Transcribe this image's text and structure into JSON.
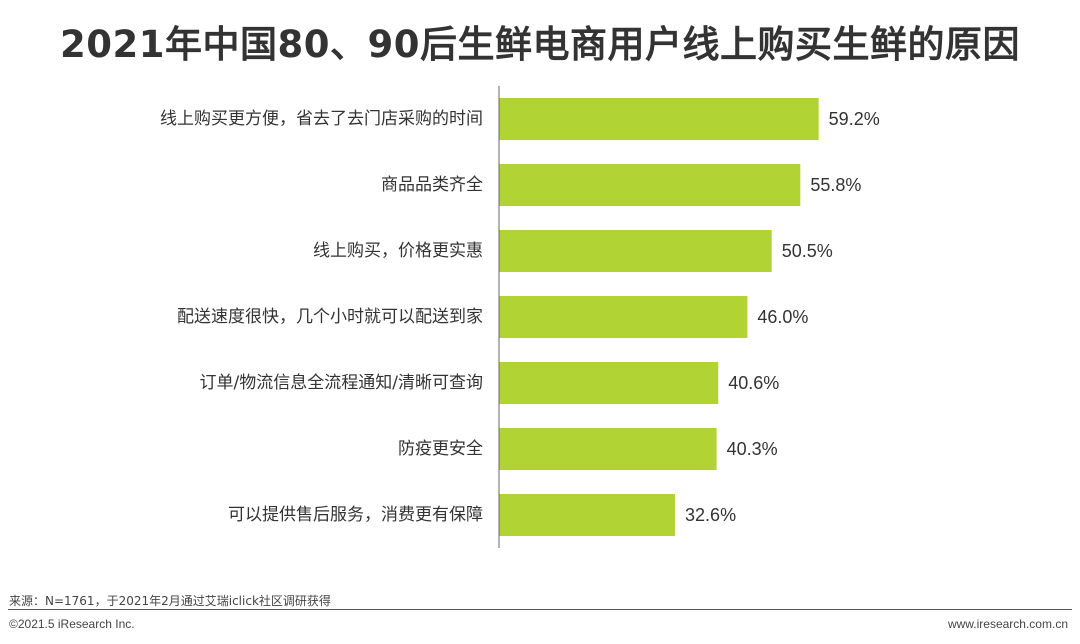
{
  "title": "2021年中国80、90后生鲜电商用户线上购买生鲜的原因",
  "chart_data": {
    "type": "bar",
    "orientation": "horizontal",
    "categories": [
      "线上购买更方便，省去了去门店采购的时间",
      "商品品类齐全",
      "线上购买，价格更实惠",
      "配送速度很快，几个小时就可以配送到家",
      "订单/物流信息全流程通知/清晰可查询",
      "防疫更安全",
      "可以提供售后服务，消费更有保障"
    ],
    "values": [
      59.2,
      55.8,
      50.5,
      46.0,
      40.6,
      40.3,
      32.6
    ],
    "value_labels": [
      "59.2%",
      "55.8%",
      "50.5%",
      "46.0%",
      "40.6%",
      "40.3%",
      "32.6%"
    ],
    "unit": "%",
    "xlim": [
      0,
      100
    ],
    "grid": false,
    "legend": "none",
    "bar_color": "#b1d434"
  },
  "footer": {
    "source": "来源：N=1761，于2021年2月通过艾瑞iclick社区调研获得",
    "copyright": "©2021.5 iResearch Inc.",
    "website": "www.iresearch.com.cn"
  }
}
